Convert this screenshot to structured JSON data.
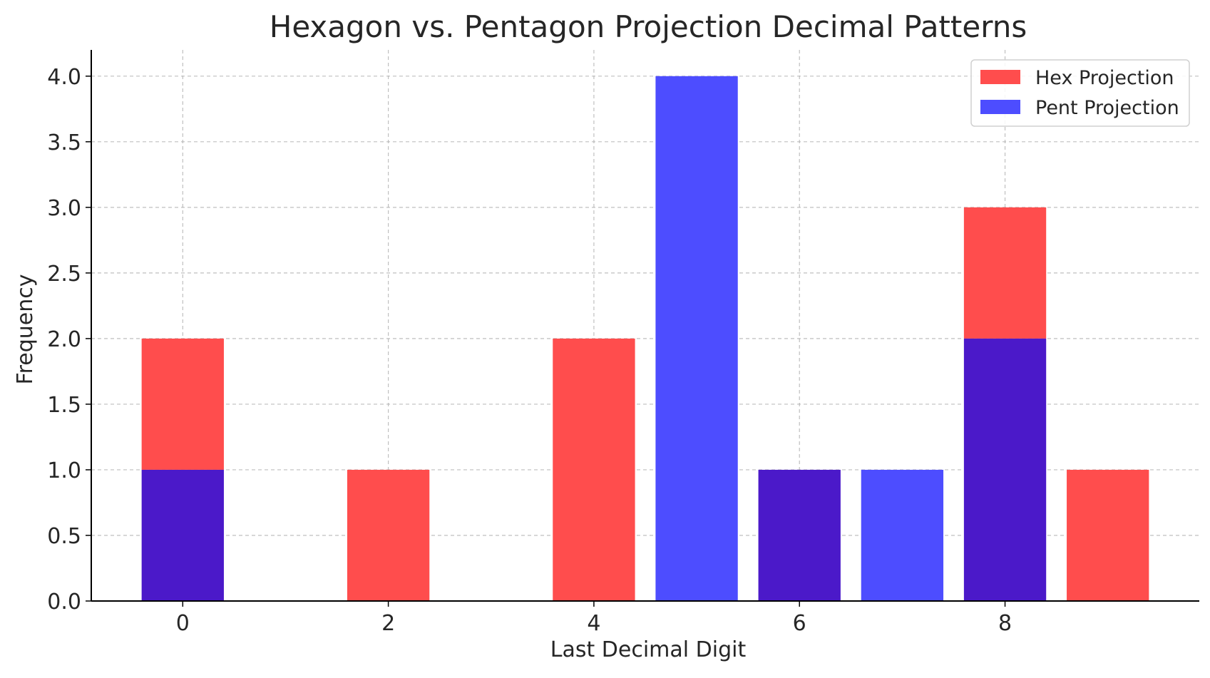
{
  "chart_data": {
    "type": "bar",
    "title": "Hexagon vs. Pentagon Projection Decimal Patterns",
    "xlabel": "Last Decimal Digit",
    "ylabel": "Frequency",
    "x_ticks": [
      "0",
      "2",
      "4",
      "6",
      "8"
    ],
    "y_ticks": [
      "0.0",
      "0.5",
      "1.0",
      "1.5",
      "2.0",
      "2.5",
      "3.0",
      "3.5",
      "4.0"
    ],
    "xlim": [
      -0.89,
      9.89
    ],
    "ylim": [
      0,
      4.2
    ],
    "grid": true,
    "legend_position": "top-right",
    "overlay": true,
    "series": [
      {
        "name": "Hex Projection",
        "color": "#ff4d4d",
        "x": [
          0,
          2,
          4,
          6,
          8,
          9
        ],
        "values": [
          2,
          1,
          2,
          1,
          3,
          1
        ]
      },
      {
        "name": "Pent Projection",
        "color": "#4d4dff",
        "x": [
          0,
          5,
          6,
          7,
          8
        ],
        "values": [
          1,
          4,
          1,
          1,
          2
        ]
      }
    ],
    "overlap_color": "#4b19c9"
  }
}
